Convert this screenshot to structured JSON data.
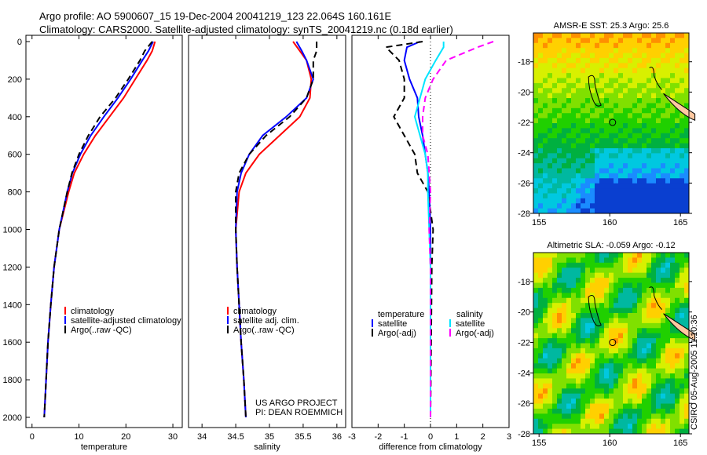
{
  "title_line1": "Argo profile: AO 5900607_15 19-Dec-2004 20041219_123 22.064S 160.161E",
  "title_line2": "Climatology: CARS2000. Satellite-adjusted climatology: synTS_20041219.nc (0.18d earlier)",
  "footer_stamp": "CSIRO 05-Aug-2005 11:10:36",
  "colors": {
    "climatology": "#ff0000",
    "satellite": "#0000ff",
    "argo": "#000000",
    "sal_satellite": "#00e5ff",
    "sal_argo": "#ff00ff"
  },
  "chart_data": [
    {
      "type": "line",
      "xlabel": "temperature",
      "ylabel": "",
      "xlim": [
        -1.3,
        32
      ],
      "ylim": [
        2050,
        0
      ],
      "xticks": [
        0,
        10,
        20,
        30
      ],
      "yticks": [
        0,
        200,
        400,
        600,
        800,
        1000,
        1200,
        1400,
        1600,
        1800,
        2000
      ],
      "depth": [
        0,
        50,
        100,
        200,
        300,
        400,
        500,
        600,
        700,
        800,
        1000,
        1200,
        1400,
        1600,
        1800,
        2000
      ],
      "series": [
        {
          "name": "climatology",
          "color": "#ff0000",
          "dash": false,
          "values": [
            26.2,
            25.6,
            24.5,
            22,
            19.5,
            16.5,
            13.5,
            11,
            9,
            7.8,
            5.8,
            4.7,
            4,
            3.4,
            3,
            2.6
          ]
        },
        {
          "name": "satellite-adjusted climatology",
          "color": "#0000ff",
          "dash": false,
          "values": [
            25.8,
            24.8,
            23.5,
            21,
            18.3,
            15.3,
            12.5,
            10.3,
            8.6,
            7.5,
            5.8,
            4.7,
            4,
            3.4,
            3,
            2.6
          ]
        },
        {
          "name": "Argo(..raw -QC)",
          "color": "#000000",
          "dash": true,
          "values": [
            25.6,
            24,
            23,
            20.5,
            17.8,
            14.5,
            12,
            10,
            8.5,
            7.5,
            5.8,
            4.7,
            4,
            3.4,
            3,
            2.6
          ]
        }
      ]
    },
    {
      "type": "line",
      "xlabel": "salinity",
      "xlim": [
        33.8,
        36.13
      ],
      "ylim": [
        2050,
        0
      ],
      "xticks": [
        34,
        34.5,
        35,
        35.5,
        36
      ],
      "yticks": [],
      "depth": [
        0,
        50,
        100,
        200,
        300,
        400,
        500,
        600,
        700,
        800,
        1000,
        1200,
        1400,
        1600,
        1800,
        2000
      ],
      "annotation": [
        "US ARGO PROJECT",
        "PI: DEAN ROEMMICH"
      ],
      "series": [
        {
          "name": "climatology",
          "color": "#ff0000",
          "dash": false,
          "values": [
            35.35,
            35.45,
            35.55,
            35.62,
            35.6,
            35.45,
            35.15,
            34.85,
            34.65,
            34.55,
            34.5,
            34.52,
            34.55,
            34.58,
            34.62,
            34.65
          ]
        },
        {
          "name": "satellite adj. clim.",
          "color": "#0000ff",
          "dash": false,
          "values": [
            35.4,
            35.48,
            35.55,
            35.65,
            35.55,
            35.25,
            34.9,
            34.7,
            34.58,
            34.52,
            34.5,
            34.52,
            34.55,
            34.58,
            34.62,
            34.65
          ]
        },
        {
          "name": "Argo(..raw -QC)",
          "color": "#000000",
          "dash": true,
          "values": [
            35.7,
            35.7,
            35.65,
            35.65,
            35.55,
            35.3,
            34.95,
            34.7,
            34.55,
            34.5,
            34.5,
            34.52,
            34.55,
            34.58,
            34.62,
            34.65
          ]
        }
      ]
    },
    {
      "type": "line",
      "xlabel": "difference from climatology",
      "xlim": [
        -3,
        3
      ],
      "ylim": [
        2050,
        0
      ],
      "xticks": [
        -3,
        -2,
        -1,
        0,
        1,
        2,
        3
      ],
      "yticks": [],
      "depth": [
        0,
        30,
        100,
        200,
        300,
        400,
        500,
        600,
        700,
        800,
        1000,
        1200,
        2000
      ],
      "legend_headers": [
        "temperature",
        "salinity"
      ],
      "series": [
        {
          "name": "satellite",
          "group": "temperature",
          "color": "#0000ff",
          "dash": false,
          "values": [
            -0.4,
            -0.9,
            -1.0,
            -0.8,
            -0.5,
            -0.45,
            -0.3,
            -0.2,
            -0.1,
            -0.05,
            0,
            0,
            0
          ]
        },
        {
          "name": "Argo(-adj)",
          "group": "temperature",
          "color": "#000000",
          "dash": true,
          "values": [
            -0.3,
            -1.7,
            -1.2,
            -1.0,
            -1.0,
            -1.4,
            -1.0,
            -0.6,
            -0.5,
            -0.1,
            0.1,
            0.05,
            0
          ]
        },
        {
          "name": "satellite",
          "group": "salinity",
          "color": "#00e5ff",
          "dash": false,
          "values": [
            0.5,
            0.5,
            0.2,
            -0.2,
            -0.4,
            -0.6,
            -0.4,
            -0.2,
            -0.1,
            -0.1,
            -0.05,
            0,
            0
          ]
        },
        {
          "name": "Argo(-adj)",
          "group": "salinity",
          "color": "#ff00ff",
          "dash": true,
          "values": [
            2.4,
            1.8,
            0.6,
            0.1,
            -0.2,
            -0.3,
            -0.3,
            -0.1,
            -0.05,
            0,
            -0.05,
            0,
            0
          ]
        }
      ]
    },
    {
      "type": "heatmap",
      "title": "AMSR-E SST: 25.3 Argo: 25.6",
      "xlim": [
        154.6,
        165.6
      ],
      "ylim": [
        -28,
        -16.1
      ],
      "xticks": [
        155,
        160,
        165
      ],
      "yticks": [
        -18,
        -20,
        -22,
        -24,
        -26,
        -28
      ]
    },
    {
      "type": "heatmap",
      "title": "Altimetric SLA: -0.059 Argo: -0.12",
      "xlim": [
        154.6,
        165.6
      ],
      "ylim": [
        -28,
        -16.1
      ],
      "xticks": [
        155,
        160,
        165
      ],
      "yticks": [
        -18,
        -20,
        -22,
        -24,
        -26,
        -28
      ]
    }
  ]
}
